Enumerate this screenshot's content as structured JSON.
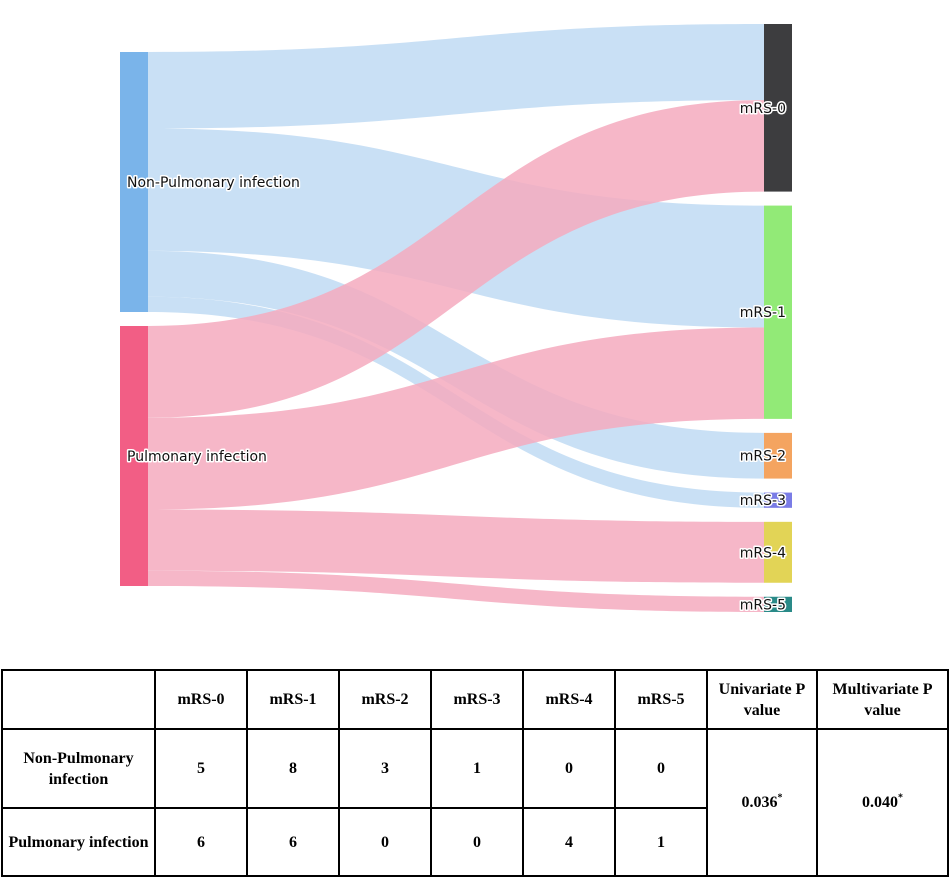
{
  "chart_data": {
    "type": "sankey",
    "sources": [
      {
        "name": "Non-Pulmonary infection",
        "color": "#7ab4ea",
        "link_color": "#bfdbf3"
      },
      {
        "name": "Pulmonary infection",
        "color": "#f25e85",
        "link_color": "#f5aabe"
      }
    ],
    "targets": [
      {
        "name": "mRS-0",
        "color": "#3d3d3f"
      },
      {
        "name": "mRS-1",
        "color": "#92ea77"
      },
      {
        "name": "mRS-2",
        "color": "#f4a460"
      },
      {
        "name": "mRS-3",
        "color": "#7a7ce6"
      },
      {
        "name": "mRS-4",
        "color": "#e2d456"
      },
      {
        "name": "mRS-5",
        "color": "#2a8a88"
      }
    ],
    "flows": [
      [
        5,
        8,
        3,
        1,
        0,
        0
      ],
      [
        6,
        6,
        0,
        0,
        4,
        1
      ]
    ]
  },
  "table": {
    "headers": [
      "",
      "mRS-0",
      "mRS-1",
      "mRS-2",
      "mRS-3",
      "mRS-4",
      "mRS-5",
      "Univariate P value",
      "Multivariate P value"
    ],
    "rows": [
      {
        "label": "Non-Pulmonary infection",
        "values": [
          "5",
          "8",
          "3",
          "1",
          "0",
          "0"
        ]
      },
      {
        "label": "Pulmonary infection",
        "values": [
          "6",
          "6",
          "0",
          "0",
          "4",
          "1"
        ]
      }
    ],
    "univariate_p": "0.036",
    "multivariate_p": "0.040",
    "significance_mark": "*"
  }
}
